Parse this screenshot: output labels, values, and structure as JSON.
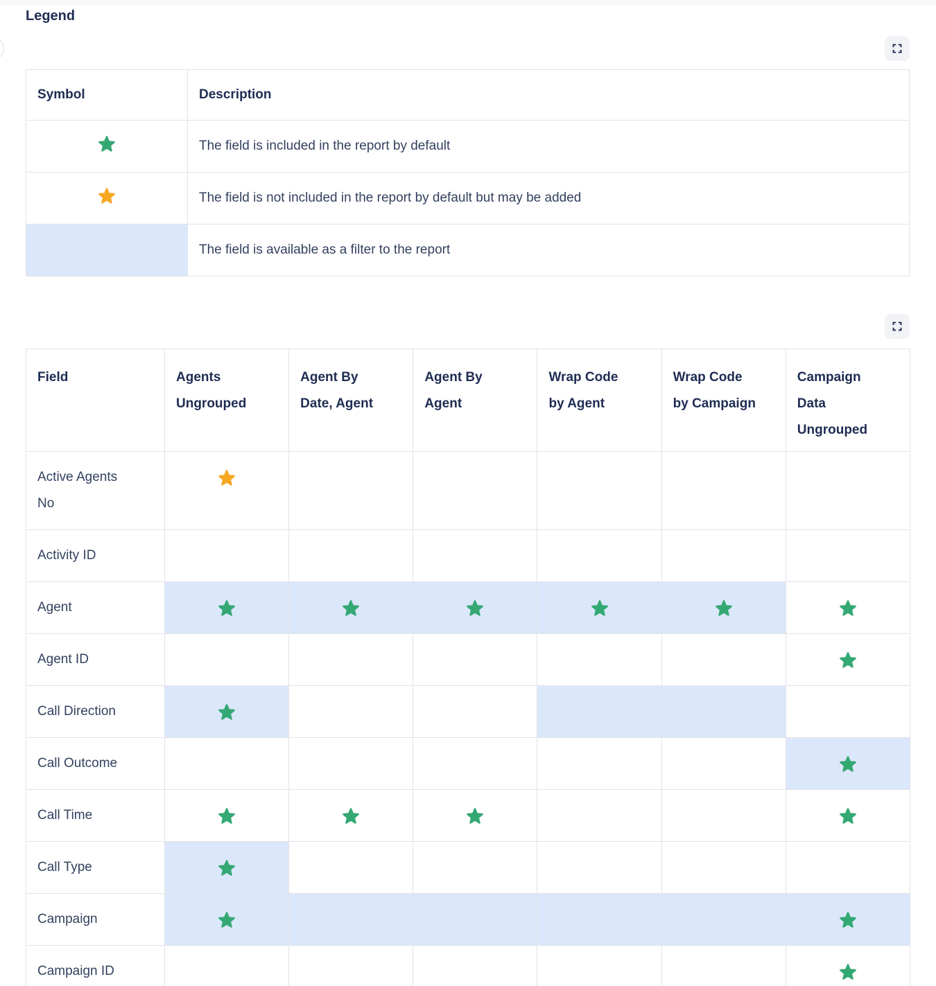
{
  "page": {
    "section_title": "Legend"
  },
  "colors": {
    "green_star": "#34a873",
    "orange_star": "#f7a823",
    "filter_blue": "#dbe7fa",
    "heading_text": "#1e2c52",
    "body_text": "#33415f",
    "table_border": "#e2e3e9",
    "expand_button_bg": "#f2f3f6",
    "expand_icon": "#17244a"
  },
  "icons": {
    "expand_button": "fullscreen-icon",
    "green_star": "star-icon-green",
    "orange_star": "star-icon-orange"
  },
  "legend_table": {
    "headers": {
      "symbol": "Symbol",
      "description": "Description"
    },
    "rows": [
      {
        "symbol": "green-star",
        "filter": false,
        "description": "The field is included in the report by default"
      },
      {
        "symbol": "orange-star",
        "filter": false,
        "description": "The field is not included in the report by default but may be added"
      },
      {
        "symbol": "",
        "filter": true,
        "description": "The field is available as a filter to the report"
      }
    ]
  },
  "fields_table": {
    "headers": [
      "Field",
      "Agents Ungrouped",
      "Agent By Date, Agent",
      "Agent By Agent",
      "Wrap Code by Agent",
      "Wrap Code by Campaign",
      "Campaign Data Ungrouped"
    ],
    "rows": [
      {
        "field": "Active Agents No",
        "cells": [
          {
            "star": "orange",
            "filter": false
          },
          {
            "star": "",
            "filter": false
          },
          {
            "star": "",
            "filter": false
          },
          {
            "star": "",
            "filter": false
          },
          {
            "star": "",
            "filter": false
          },
          {
            "star": "",
            "filter": false
          }
        ]
      },
      {
        "field": "Activity ID",
        "cells": [
          {
            "star": "",
            "filter": false
          },
          {
            "star": "",
            "filter": false
          },
          {
            "star": "",
            "filter": false
          },
          {
            "star": "",
            "filter": false
          },
          {
            "star": "",
            "filter": false
          },
          {
            "star": "",
            "filter": false
          }
        ]
      },
      {
        "field": "Agent",
        "cells": [
          {
            "star": "green",
            "filter": true
          },
          {
            "star": "green",
            "filter": true
          },
          {
            "star": "green",
            "filter": true
          },
          {
            "star": "green",
            "filter": true
          },
          {
            "star": "green",
            "filter": true
          },
          {
            "star": "green",
            "filter": false
          }
        ]
      },
      {
        "field": "Agent ID",
        "cells": [
          {
            "star": "",
            "filter": false
          },
          {
            "star": "",
            "filter": false
          },
          {
            "star": "",
            "filter": false
          },
          {
            "star": "",
            "filter": false
          },
          {
            "star": "",
            "filter": false
          },
          {
            "star": "green",
            "filter": false
          }
        ]
      },
      {
        "field": "Call Direction",
        "cells": [
          {
            "star": "green",
            "filter": true
          },
          {
            "star": "",
            "filter": false
          },
          {
            "star": "",
            "filter": false
          },
          {
            "star": "",
            "filter": true
          },
          {
            "star": "",
            "filter": true
          },
          {
            "star": "",
            "filter": false
          }
        ]
      },
      {
        "field": "Call Outcome",
        "cells": [
          {
            "star": "",
            "filter": false
          },
          {
            "star": "",
            "filter": false
          },
          {
            "star": "",
            "filter": false
          },
          {
            "star": "",
            "filter": false
          },
          {
            "star": "",
            "filter": false
          },
          {
            "star": "green",
            "filter": true
          }
        ]
      },
      {
        "field": "Call Time",
        "cells": [
          {
            "star": "green",
            "filter": false
          },
          {
            "star": "green",
            "filter": false
          },
          {
            "star": "green",
            "filter": false
          },
          {
            "star": "",
            "filter": false
          },
          {
            "star": "",
            "filter": false
          },
          {
            "star": "green",
            "filter": false
          }
        ]
      },
      {
        "field": "Call Type",
        "cells": [
          {
            "star": "green",
            "filter": true
          },
          {
            "star": "",
            "filter": false
          },
          {
            "star": "",
            "filter": false
          },
          {
            "star": "",
            "filter": false
          },
          {
            "star": "",
            "filter": false
          },
          {
            "star": "",
            "filter": false
          }
        ]
      },
      {
        "field": "Campaign",
        "cells": [
          {
            "star": "green",
            "filter": true
          },
          {
            "star": "",
            "filter": true
          },
          {
            "star": "",
            "filter": true
          },
          {
            "star": "",
            "filter": true
          },
          {
            "star": "",
            "filter": true
          },
          {
            "star": "green",
            "filter": true
          }
        ]
      },
      {
        "field": "Campaign ID",
        "cells": [
          {
            "star": "",
            "filter": false
          },
          {
            "star": "",
            "filter": false
          },
          {
            "star": "",
            "filter": false
          },
          {
            "star": "",
            "filter": false
          },
          {
            "star": "",
            "filter": false
          },
          {
            "star": "green",
            "filter": false
          }
        ]
      }
    ]
  }
}
